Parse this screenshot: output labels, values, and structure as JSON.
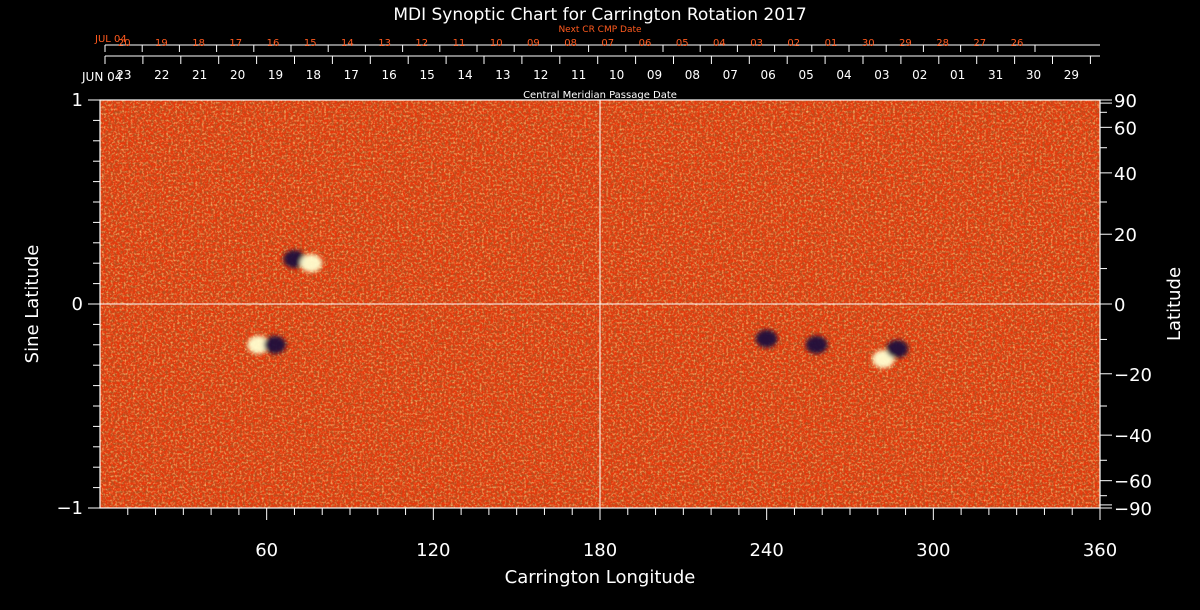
{
  "chart_data": {
    "type": "heatmap",
    "title": "MDI Synoptic Chart for Carrington Rotation 2017",
    "xlabel": "Carrington Longitude",
    "ylabel_left": "Sine Latitude",
    "ylabel_right": "Latitude",
    "xlim": [
      0,
      360
    ],
    "ylim": [
      -1,
      1
    ],
    "x_ticks": [
      "60",
      "120",
      "180",
      "240",
      "300",
      "360"
    ],
    "y_ticks_left": [
      "1",
      "0",
      "−1"
    ],
    "y_ticks_right": [
      "90",
      "60",
      "40",
      "20",
      "0",
      "−20",
      "−40",
      "−60",
      "−90"
    ],
    "y_ticks_right_values": [
      90,
      60,
      40,
      20,
      0,
      -20,
      -40,
      -60,
      -90
    ],
    "colors": {
      "background": "#000000",
      "field_base": "#e8380c",
      "positive_polarity": "#ffffd0",
      "negative_polarity": "#1e0a3c",
      "guide_lines": "#ffffff",
      "next_axis_text": "#ff5a1e"
    },
    "top_axis": {
      "start_label": "JUN 04",
      "labels": [
        "23",
        "22",
        "21",
        "20",
        "19",
        "18",
        "17",
        "16",
        "15",
        "14",
        "13",
        "12",
        "11",
        "10",
        "09",
        "08",
        "07",
        "06",
        "05",
        "04",
        "03",
        "02",
        "01",
        "31",
        "30",
        "29"
      ],
      "caption": "Central Meridian Passage Date"
    },
    "next_axis": {
      "start_label": "JUL 04",
      "labels": [
        "20",
        "19",
        "18",
        "17",
        "16",
        "15",
        "14",
        "13",
        "12",
        "11",
        "10",
        "09",
        "08",
        "07",
        "06",
        "05",
        "04",
        "03",
        "02",
        "01",
        "30",
        "29",
        "28",
        "27",
        "26"
      ],
      "caption": "Next CR CMP Date"
    },
    "active_regions": [
      {
        "lon": 57,
        "sinlat": -0.2,
        "polarity": "positive"
      },
      {
        "lon": 63,
        "sinlat": -0.2,
        "polarity": "negative"
      },
      {
        "lon": 70,
        "sinlat": 0.22,
        "polarity": "negative"
      },
      {
        "lon": 76,
        "sinlat": 0.2,
        "polarity": "positive"
      },
      {
        "lon": 282,
        "sinlat": -0.27,
        "polarity": "positive"
      },
      {
        "lon": 287,
        "sinlat": -0.22,
        "polarity": "negative"
      },
      {
        "lon": 258,
        "sinlat": -0.2,
        "polarity": "negative"
      },
      {
        "lon": 240,
        "sinlat": -0.17,
        "polarity": "negative"
      }
    ]
  }
}
